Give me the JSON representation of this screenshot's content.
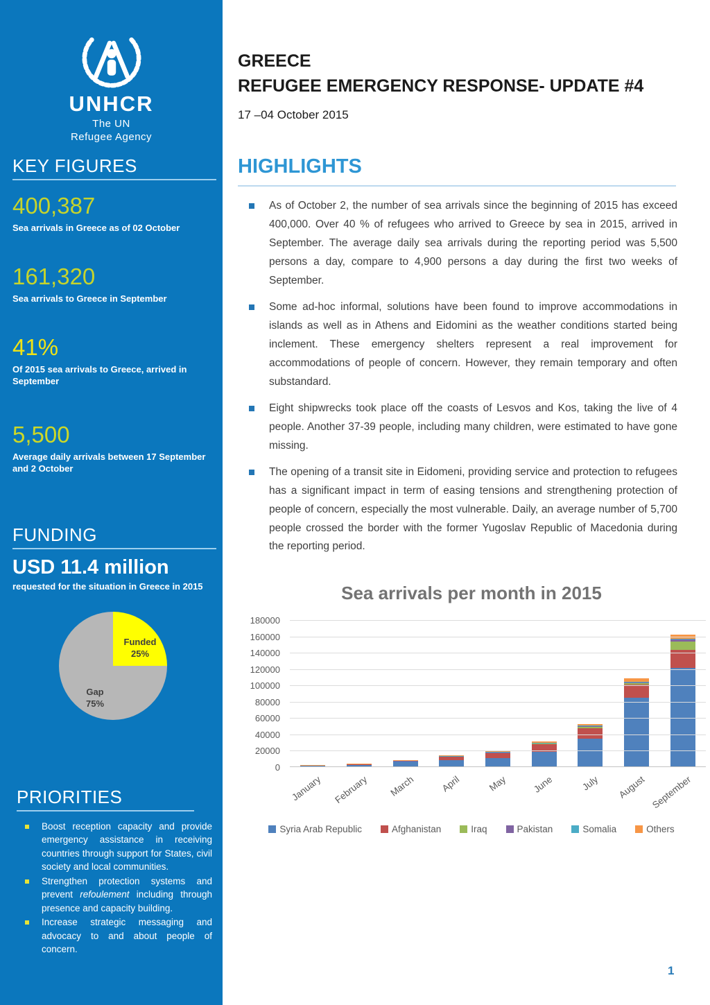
{
  "colors": {
    "sidebar_blue": "#0b77bd",
    "accent_blue": "#2e96d4",
    "heading_rule_blue": "#9ecfee",
    "bullet_blue": "#2376b5",
    "figure_green": "#c6d42c",
    "figure_yellow": "#f0e316"
  },
  "sidebar": {
    "logo": {
      "org": "UNHCR",
      "tagline_line1": "The UN",
      "tagline_line2": "Refugee Agency"
    },
    "key_figures_title": "KEY FIGURES",
    "key_figures": [
      {
        "value": "400,387",
        "label": "Sea arrivals in Greece as of 02 October",
        "color": "#c6d42c"
      },
      {
        "value": "161,320",
        "label": "Sea arrivals to Greece in September",
        "color": "#c6d42c"
      },
      {
        "value": "41%",
        "label": "Of 2015 sea arrivals to Greece, arrived in September",
        "color": "#f0e316"
      },
      {
        "value": "5,500",
        "label": "Average daily arrivals between 17 September and 2 October",
        "color": "#cdd827"
      }
    ],
    "funding_title": "FUNDING",
    "funding": {
      "amount": "USD 11.4 million",
      "label": "requested for the situation in Greece in 2015",
      "pie": {
        "funded_label": "Funded",
        "funded_pct": "25%",
        "funded_value": 25,
        "funded_color": "#ffff00",
        "gap_label": "Gap",
        "gap_pct": "75%",
        "gap_value": 75,
        "gap_color": "#b7b7b7"
      }
    },
    "priorities_title": "PRIORITIES",
    "priorities": [
      {
        "segments": [
          {
            "text": "Boost reception capacity and provide emergency assistance in receiving countries through support for States, civil society and local communities.",
            "italic": false
          }
        ]
      },
      {
        "segments": [
          {
            "text": "Strengthen protection systems and prevent ",
            "italic": false
          },
          {
            "text": "refoulement",
            "italic": true
          },
          {
            "text": " including through presence and capacity building.",
            "italic": false
          }
        ]
      },
      {
        "segments": [
          {
            "text": "Increase strategic messaging and advocacy to and about people of concern.",
            "italic": false
          }
        ]
      }
    ]
  },
  "header": {
    "country": "GREECE",
    "title": "REFUGEE EMERGENCY RESPONSE- UPDATE #4",
    "date_range": "17 –04 October 2015"
  },
  "highlights": {
    "title": "HIGHLIGHTS",
    "bullets": [
      "As of October 2, the number of sea arrivals since the beginning of 2015 has exceed 400,000. Over 40 % of refugees who arrived to Greece by sea in 2015, arrived in September. The average daily sea arrivals during the reporting period was 5,500 persons a day, compare to 4,900 persons a day during the first two weeks of September.",
      "Some ad-hoc informal, solutions have been found to improve accommodations in islands as well as in Athens and Eidomini as the weather conditions started being inclement. These emergency shelters represent a real improvement for accommodations of people of concern. However, they remain temporary and often substandard.",
      "Eight shipwrecks took place off the coasts of Lesvos and Kos, taking the live of 4 people. Another 37-39 people, including many children, were estimated to have gone missing.",
      "The opening of a transit site in Eidomeni, providing service and protection to refugees has a significant impact in term of easing tensions and strengthening protection of people of concern, especially the most vulnerable. Daily, an average number of 5,700 people crossed the border with the former Yugoslav Republic of Macedonia during the reporting period."
    ]
  },
  "chart_data": {
    "type": "bar",
    "stacked": true,
    "title": "Sea arrivals per month in 2015",
    "categories": [
      "January",
      "February",
      "March",
      "April",
      "May",
      "June",
      "July",
      "August",
      "September"
    ],
    "series": [
      {
        "name": "Syria Arab Republic",
        "color": "#4f81bd",
        "values": [
          800,
          1600,
          5800,
          8000,
          10000,
          17500,
          34000,
          84000,
          120500
        ]
      },
      {
        "name": "Afghanistan",
        "color": "#c0504d",
        "values": [
          500,
          900,
          1200,
          4300,
          6500,
          9700,
          13000,
          16000,
          22500
        ]
      },
      {
        "name": "Iraq",
        "color": "#9bbb59",
        "values": [
          0,
          0,
          100,
          200,
          300,
          500,
          1000,
          1800,
          10000
        ]
      },
      {
        "name": "Pakistan",
        "color": "#8064a2",
        "values": [
          0,
          0,
          100,
          200,
          500,
          800,
          1200,
          1200,
          2500
        ]
      },
      {
        "name": "Somalia",
        "color": "#4bacc6",
        "values": [
          0,
          0,
          0,
          100,
          200,
          500,
          800,
          700,
          1000
        ]
      },
      {
        "name": "Others",
        "color": "#f79646",
        "values": [
          400,
          500,
          300,
          700,
          1000,
          2000,
          2000,
          4300,
          4500
        ]
      }
    ],
    "ylim": [
      0,
      180000
    ],
    "ytick_step": 20000,
    "grid": true,
    "legend_position": "bottom"
  },
  "footer": {
    "page_number": "1"
  }
}
